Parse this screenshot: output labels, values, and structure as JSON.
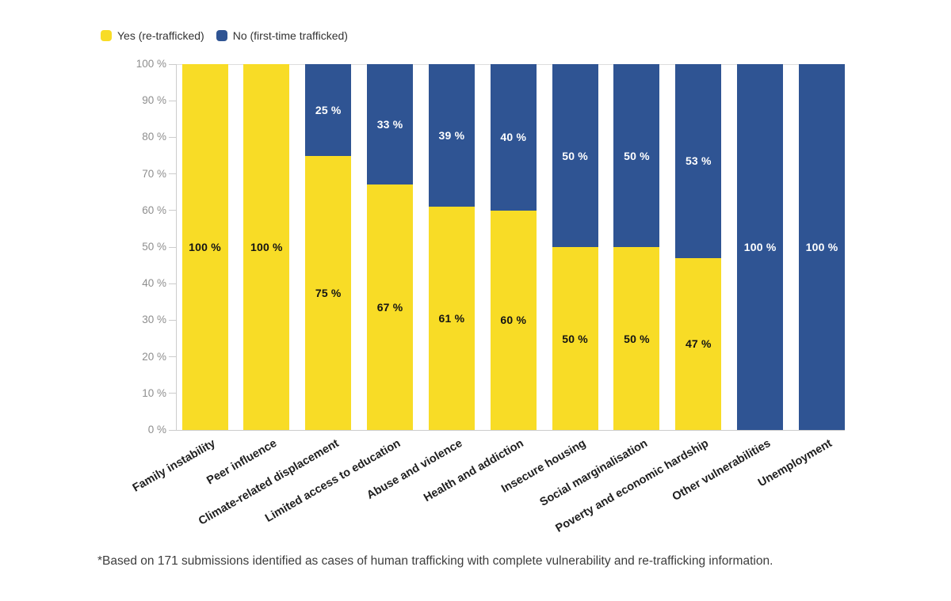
{
  "legend": {
    "items": [
      {
        "label": "Yes (re-trafficked)",
        "color": "#F8DC26"
      },
      {
        "label": "No (first-time trafficked)",
        "color": "#2F5493"
      }
    ]
  },
  "chart_data": {
    "type": "bar",
    "stacked": true,
    "orientation": "vertical",
    "title": "",
    "xlabel": "",
    "ylabel": "",
    "ylim": [
      0,
      100
    ],
    "ytick_step": 10,
    "ytick_suffix": " %",
    "value_label_suffix": " %",
    "grid": "top-and-bottom-lines-only",
    "legend_position": "top-left",
    "categories": [
      "Family instability",
      "Peer influence",
      "Climate-related displacement",
      "Limited access to education",
      "Abuse and violence",
      "Health and addiction",
      "Insecure housing",
      "Social marginalisation",
      "Poverty and economic hardship",
      "Other vulnerabilities",
      "Unemployment"
    ],
    "series": [
      {
        "name": "Yes (re-trafficked)",
        "color": "#F8DC26",
        "label_color": "#141414",
        "values": [
          100,
          100,
          75,
          67,
          61,
          60,
          50,
          50,
          47,
          0,
          0
        ]
      },
      {
        "name": "No (first-time trafficked)",
        "color": "#2F5493",
        "label_color": "#ffffff",
        "values": [
          0,
          0,
          25,
          33,
          39,
          40,
          50,
          50,
          53,
          100,
          100
        ]
      }
    ]
  },
  "footnote": "*Based on 171 submissions identified as cases of human trafficking with complete vulnerability and re-trafficking information."
}
